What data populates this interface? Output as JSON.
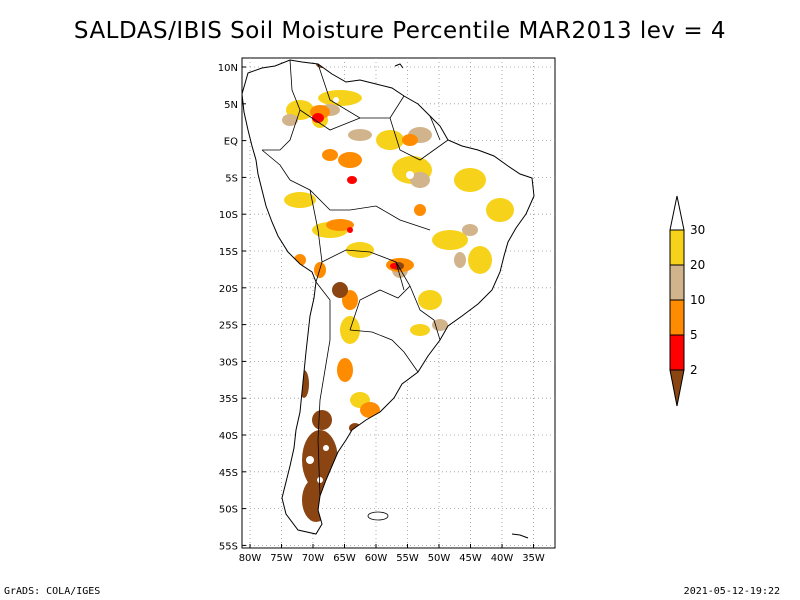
{
  "title": "SALDAS/IBIS Soil Moisture Percentile MAR2013 lev = 4",
  "footer": {
    "left": "GrADS: COLA/IGES",
    "right": "2021-05-12-19:22"
  },
  "chart_data": {
    "type": "map",
    "region": "South America",
    "variable": "Soil Moisture Percentile",
    "source": "SALDAS/IBIS",
    "period": "MAR2013",
    "level": "lev = 4",
    "lon_range": [
      -81,
      -31
    ],
    "lat_range": [
      -56,
      12
    ],
    "lon_ticks": [
      "80W",
      "75W",
      "70W",
      "65W",
      "60W",
      "55W",
      "50W",
      "45W",
      "40W",
      "35W"
    ],
    "lat_ticks": [
      "10N",
      "5N",
      "EQ",
      "5S",
      "10S",
      "15S",
      "20S",
      "25S",
      "30S",
      "35S",
      "40S",
      "45S",
      "50S",
      "55S"
    ],
    "legend": {
      "levels": [
        "30",
        "20",
        "10",
        "5",
        "2"
      ],
      "bins": [
        {
          "range": "20-30",
          "color": "#f7d21a"
        },
        {
          "range": "10-20",
          "color": "#d2b48c"
        },
        {
          "range": "5-10",
          "color": "#ff8c00"
        },
        {
          "range": "2-5",
          "color": "#ff0000"
        },
        {
          "range": "<2",
          "color": "#8b4513"
        }
      ],
      "above_color": "#ffffff"
    }
  }
}
